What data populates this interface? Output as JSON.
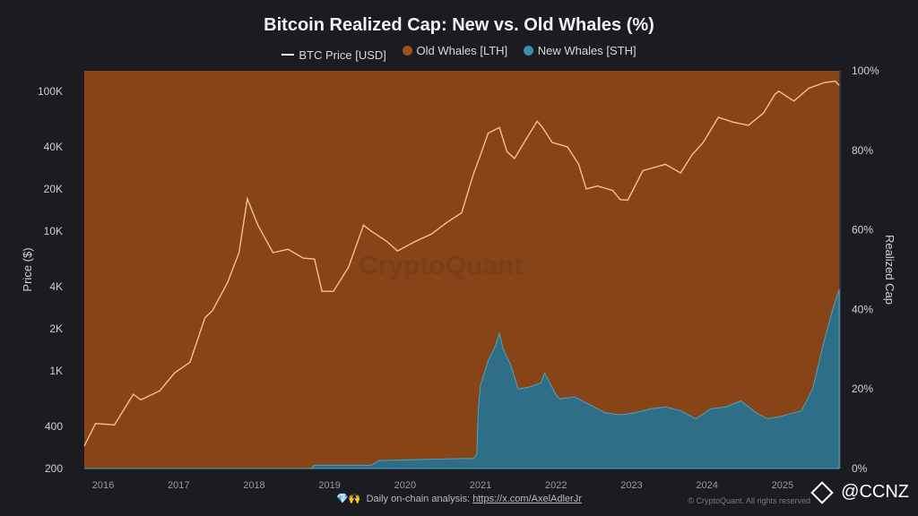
{
  "footer": {
    "icons": "💎🙌",
    "text": "Daily on-chain analysis:",
    "link": "https://x.com/AxelAdlerJr"
  },
  "copyright": "© CryptoQuant. All rights reserved",
  "badge": "@CCNZ",
  "watermark": "CryptoQuant",
  "colors": {
    "background": "#1b1c22",
    "old_whales": "#864417",
    "new_whales": "#2e6e86",
    "price": "#f7c08f"
  },
  "chart_data": {
    "type": "area",
    "title": "Bitcoin Realized Cap: New vs. Old Whales (%)",
    "legend": [
      "BTC Price [USD]",
      "Old Whales [LTH]",
      "New Whales [STH]"
    ],
    "legend_position": "top-center",
    "grid": false,
    "ylabel_left": "Price ($)",
    "ylabel_right": "Realized Cap",
    "left_axis": {
      "scale": "log",
      "range": [
        200,
        140000
      ],
      "ticks": [
        "100K",
        "40K",
        "20K",
        "10K",
        "4K",
        "2K",
        "1K",
        "400",
        "200"
      ],
      "tick_values": [
        100000,
        40000,
        20000,
        10000,
        4000,
        2000,
        1000,
        400,
        200
      ]
    },
    "right_axis": {
      "range": [
        0,
        100
      ],
      "ticks": [
        "100%",
        "80%",
        "60%",
        "40%",
        "20%",
        "0%"
      ],
      "tick_values": [
        100,
        80,
        60,
        40,
        20,
        0
      ]
    },
    "x_axis": {
      "range": [
        2015.8,
        2025.8
      ],
      "ticks": [
        "2016",
        "2017",
        "2018",
        "2019",
        "2020",
        "2021",
        "2022",
        "2023",
        "2024",
        "2025"
      ]
    },
    "series": [
      {
        "name": "BTC Price [USD]",
        "axis": "left",
        "x": [
          2015.8,
          2015.95,
          2016.2,
          2016.45,
          2016.55,
          2016.8,
          2017.0,
          2017.2,
          2017.4,
          2017.5,
          2017.7,
          2017.85,
          2017.96,
          2018.1,
          2018.3,
          2018.5,
          2018.7,
          2018.85,
          2018.95,
          2019.1,
          2019.3,
          2019.5,
          2019.6,
          2019.8,
          2019.95,
          2020.2,
          2020.4,
          2020.6,
          2020.8,
          2020.95,
          2021.05,
          2021.15,
          2021.3,
          2021.4,
          2021.5,
          2021.65,
          2021.8,
          2021.87,
          2022.0,
          2022.2,
          2022.35,
          2022.45,
          2022.6,
          2022.8,
          2022.9,
          2023.0,
          2023.2,
          2023.5,
          2023.7,
          2023.85,
          2024.0,
          2024.2,
          2024.4,
          2024.6,
          2024.8,
          2024.95,
          2025.0,
          2025.2,
          2025.4,
          2025.6,
          2025.75,
          2025.8
        ],
        "y": [
          290,
          420,
          410,
          680,
          620,
          720,
          970,
          1150,
          2400,
          2700,
          4300,
          7000,
          17000,
          11000,
          7000,
          7400,
          6400,
          6300,
          3700,
          3700,
          5500,
          11000,
          10000,
          8500,
          7200,
          8500,
          9500,
          11500,
          13500,
          25000,
          35000,
          50000,
          55000,
          37000,
          33000,
          45000,
          61000,
          55000,
          43000,
          40000,
          30000,
          20000,
          21000,
          19500,
          16800,
          16600,
          27000,
          30000,
          26000,
          35000,
          43000,
          65000,
          60000,
          57000,
          70000,
          95000,
          100000,
          85000,
          105000,
          115000,
          118000,
          110000
        ]
      },
      {
        "name": "Old Whales [LTH]",
        "axis": "right",
        "description": "fills the remainder to 100%"
      },
      {
        "name": "New Whales [STH]",
        "axis": "right",
        "x": [
          2015.8,
          2018.8,
          2018.85,
          2019.6,
          2019.7,
          2020.8,
          2020.95,
          2021.0,
          2021.02,
          2021.05,
          2021.15,
          2021.25,
          2021.3,
          2021.35,
          2021.45,
          2021.55,
          2021.7,
          2021.85,
          2021.9,
          2022.05,
          2022.1,
          2022.3,
          2022.5,
          2022.7,
          2022.9,
          2023.1,
          2023.3,
          2023.5,
          2023.7,
          2023.9,
          2024.1,
          2024.3,
          2024.5,
          2024.7,
          2024.85,
          2025.0,
          2025.2,
          2025.3,
          2025.45,
          2025.6,
          2025.7,
          2025.8
        ],
        "y": [
          0,
          0,
          0.8,
          0.8,
          2.0,
          2.5,
          2.5,
          3.5,
          15.0,
          21.0,
          27.0,
          31.0,
          34.0,
          30.0,
          26.0,
          20.0,
          20.5,
          21.5,
          24.0,
          18.5,
          17.5,
          18.0,
          16.0,
          14.0,
          13.5,
          14.0,
          15.0,
          15.5,
          14.5,
          12.5,
          15.0,
          15.5,
          17.0,
          14.0,
          12.5,
          13.0,
          14.0,
          14.5,
          20.0,
          32.0,
          39.0,
          45.0
        ]
      }
    ]
  }
}
